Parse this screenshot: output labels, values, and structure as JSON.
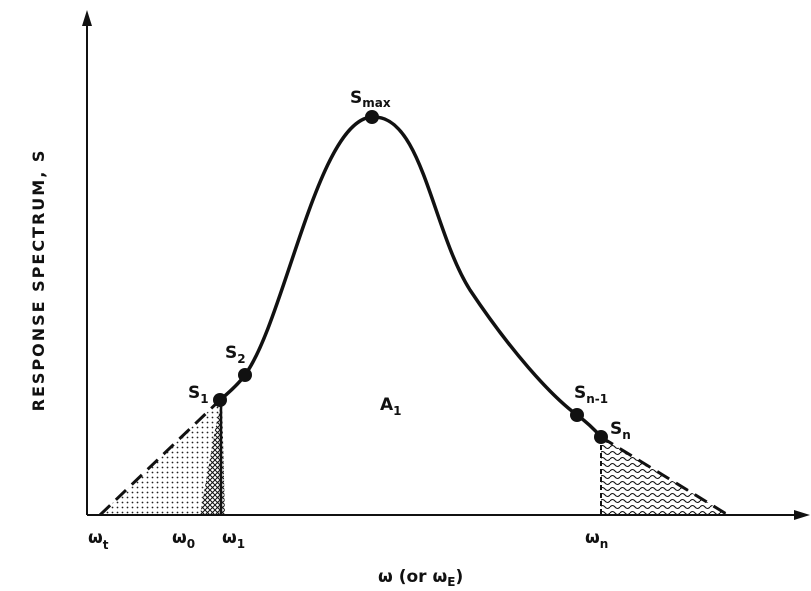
{
  "axes": {
    "y_label": "RESPONSE SPECTRUM, S",
    "x_label": {
      "text": "ω (or ω",
      "sub": "E",
      "tail": ")"
    }
  },
  "points": [
    {
      "base": "S",
      "sub": "max"
    },
    {
      "base": "S",
      "sub": "2"
    },
    {
      "base": "S",
      "sub": "1"
    },
    {
      "base": "S",
      "sub": "n-1"
    },
    {
      "base": "S",
      "sub": "n"
    }
  ],
  "area_label": {
    "base": "A",
    "sub": "1"
  },
  "x_marks": [
    {
      "base": "ω",
      "sub": "t"
    },
    {
      "base": "ω",
      "sub": "0"
    },
    {
      "base": "ω",
      "sub": "1"
    },
    {
      "base": "ω",
      "sub": "n"
    }
  ]
}
